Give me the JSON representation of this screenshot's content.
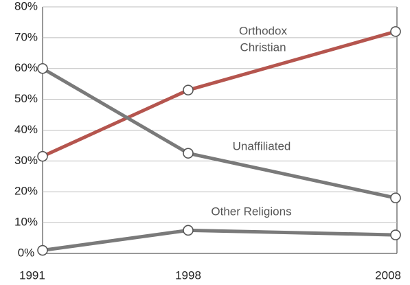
{
  "chart_data": {
    "type": "line",
    "x": [
      "1991",
      "1998",
      "2008"
    ],
    "ylim": [
      0,
      80
    ],
    "y_ticks": [
      "0%",
      "10%",
      "20%",
      "30%",
      "40%",
      "50%",
      "60%",
      "70%",
      "80%"
    ],
    "grid": true,
    "series": [
      {
        "name": "Orthodox Christian",
        "label_lines": [
          "Orthodox",
          "Christian"
        ],
        "color": "#b5554e",
        "values": [
          31.5,
          53,
          72
        ]
      },
      {
        "name": "Unaffiliated",
        "label_lines": [
          "Unaffiliated"
        ],
        "color": "#7a7a7a",
        "values": [
          60,
          32.5,
          18
        ]
      },
      {
        "name": "Other Religions",
        "label_lines": [
          "Other Religions"
        ],
        "color": "#7a7a7a",
        "values": [
          1,
          7.5,
          6
        ]
      }
    ]
  }
}
